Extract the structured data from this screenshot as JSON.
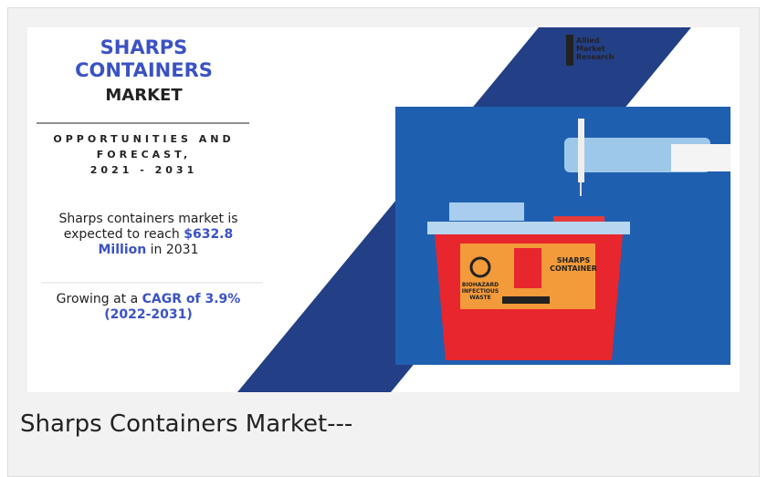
{
  "infographic": {
    "title": [
      "SHARPS",
      "CONTAINERS",
      "MARKET"
    ],
    "subtitle": [
      "OPPORTUNITIES AND",
      "FORECAST,",
      "2021 - 2031"
    ],
    "stat_1": [
      "Sharps containers market is expected to reach ",
      "$632.8 Million",
      " in 2031"
    ],
    "stat_2": [
      "Growing at a ",
      "CAGR of 3.9% (2022-2031)"
    ],
    "logo": [
      "Allied",
      "Market",
      "Research"
    ],
    "container_label": [
      "SHARPS",
      "CONTAINER"
    ],
    "biohazard_label": [
      "BIOHAZARD",
      "INFECTIOUS",
      "WASTE"
    ]
  },
  "caption": "Sharps Containers Market---"
}
